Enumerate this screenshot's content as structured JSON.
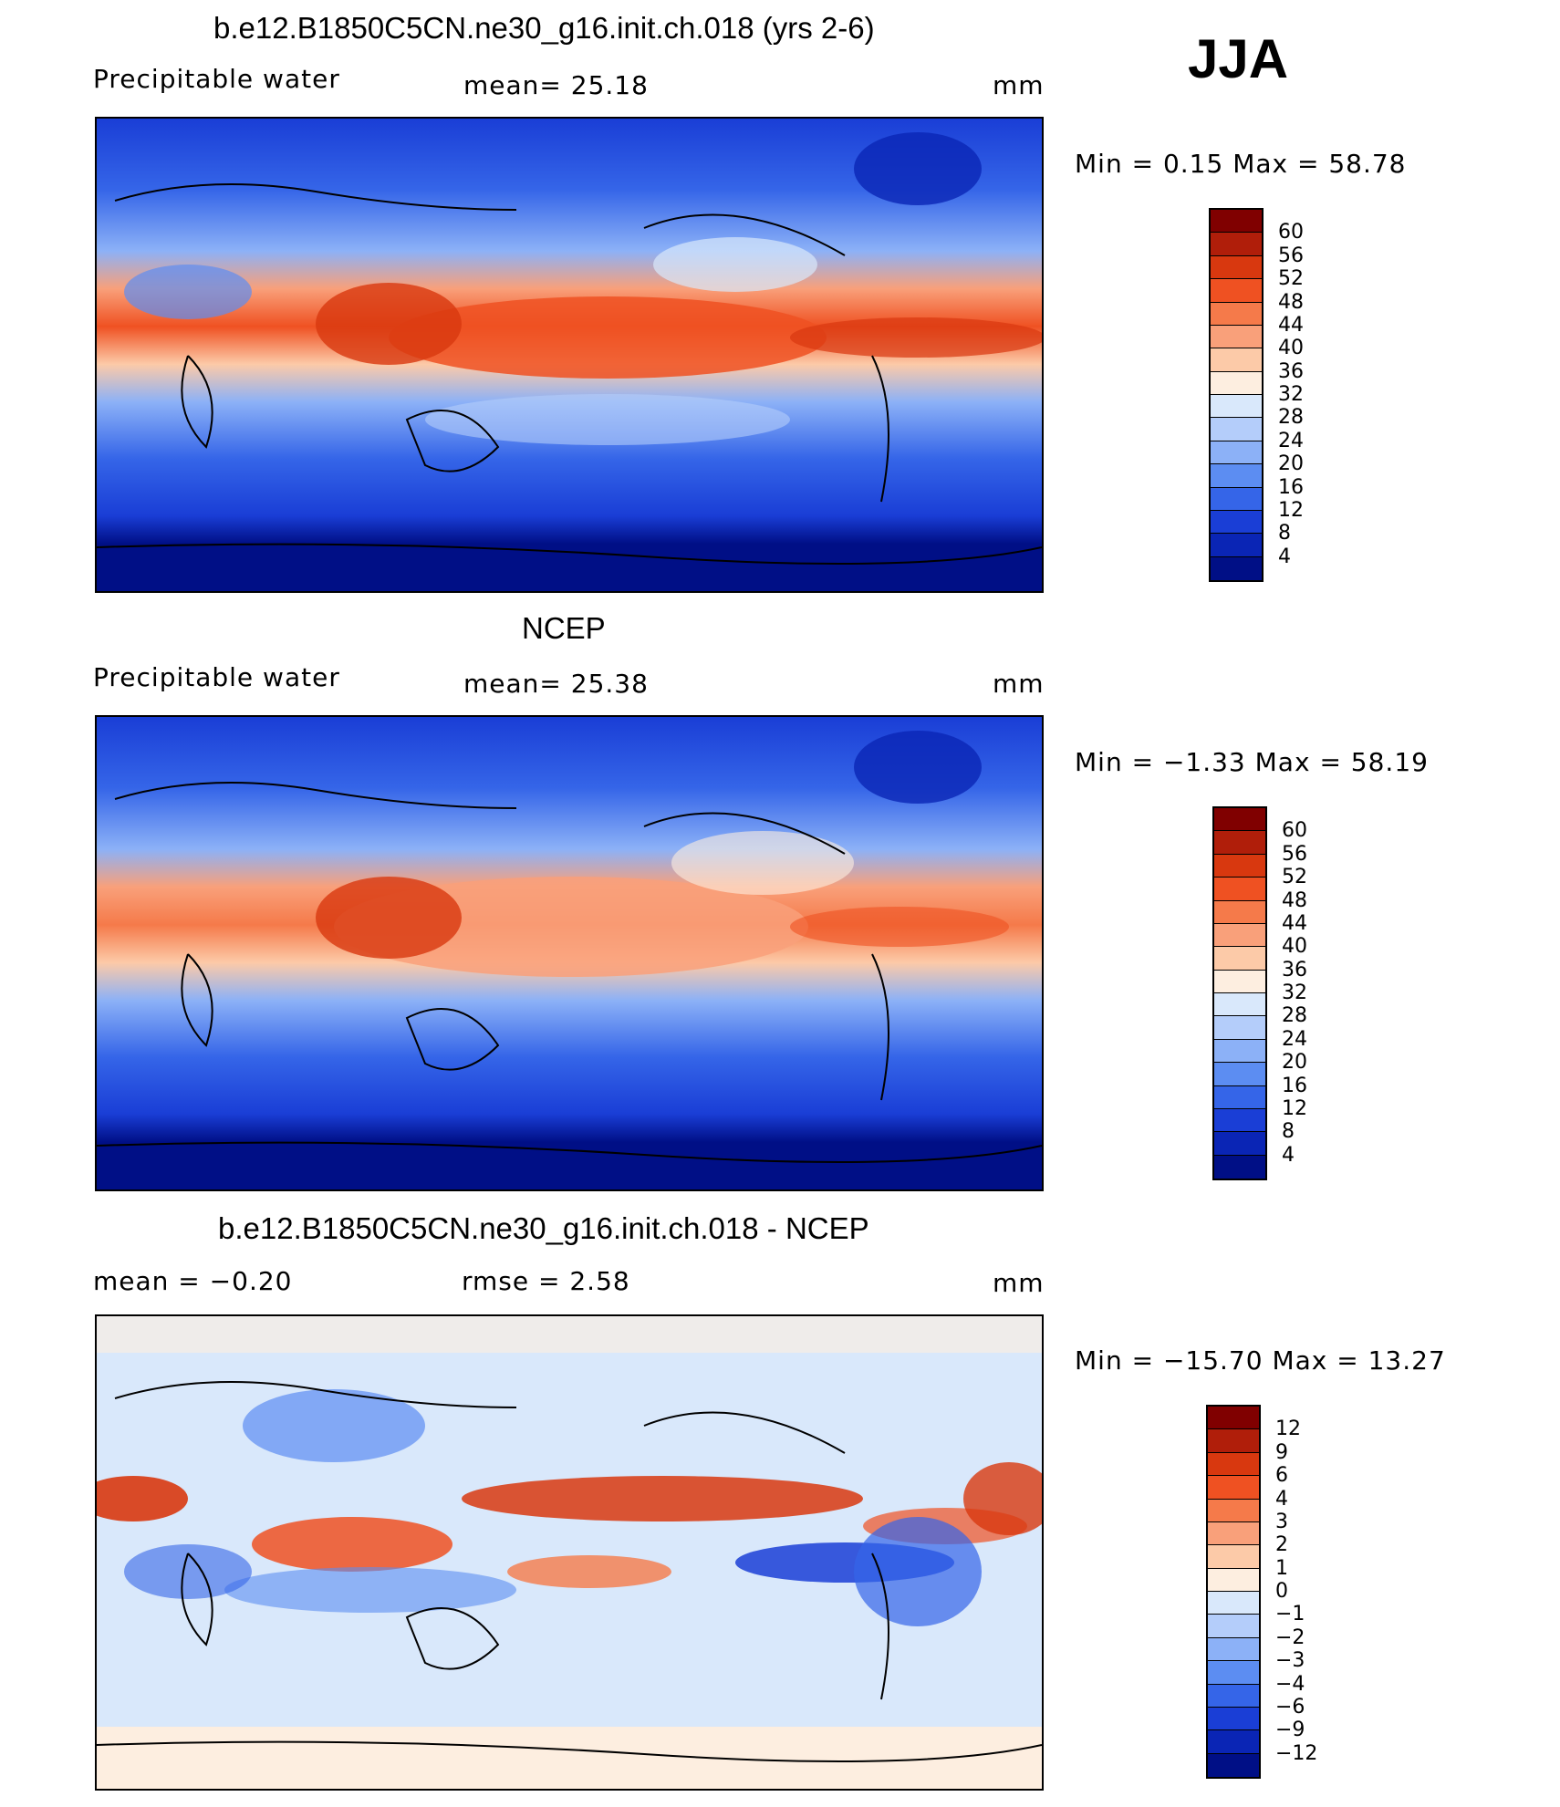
{
  "season_label": "JJA",
  "palette_precip": [
    "#e8ecff"
  ],
  "panels": [
    {
      "id": "model",
      "title": "b.e12.B1850C5CN.ne30_g16.init.ch.018 (yrs 2-6)",
      "left_label": "Precipitable  water",
      "mid_label": "mean=   25.18",
      "units": "mm",
      "minmax": "Min  =     0.15  Max  =    58.78",
      "colorbar_labels": [
        "60",
        "56",
        "52",
        "48",
        "44",
        "40",
        "36",
        "32",
        "28",
        "24",
        "20",
        "16",
        "12",
        "8",
        "4"
      ],
      "colorbar_colors": [
        "#800000",
        "#b01e0a",
        "#d8380f",
        "#ef5122",
        "#f57a4a",
        "#f9a07a",
        "#fccaa8",
        "#fdeee0",
        "#d9e8fb",
        "#b4cdfa",
        "#8cb1f7",
        "#5c8df2",
        "#3565e8",
        "#1a3ed6",
        "#0a25b5",
        "#000f86"
      ],
      "chart_data": {
        "type": "heatmap",
        "title": "b.e12.B1850C5CN.ne30_g16.init.ch.018 (yrs 2-6)",
        "variable": "Precipitable  water",
        "mean": 25.18,
        "units": "mm",
        "min": 0.15,
        "max": 58.78,
        "levels": [
          4,
          8,
          12,
          16,
          20,
          24,
          28,
          32,
          36,
          40,
          44,
          48,
          52,
          56,
          60
        ]
      }
    },
    {
      "id": "obs",
      "title": "NCEP",
      "left_label": "Precipitable  water",
      "mid_label": "mean=   25.38",
      "units": "mm",
      "minmax": "Min  =    −1.33  Max  =    58.19",
      "colorbar_labels": [
        "60",
        "56",
        "52",
        "48",
        "44",
        "40",
        "36",
        "32",
        "28",
        "24",
        "20",
        "16",
        "12",
        "8",
        "4"
      ],
      "colorbar_colors": [
        "#800000",
        "#b01e0a",
        "#d8380f",
        "#ef5122",
        "#f57a4a",
        "#f9a07a",
        "#fccaa8",
        "#fdeee0",
        "#d9e8fb",
        "#b4cdfa",
        "#8cb1f7",
        "#5c8df2",
        "#3565e8",
        "#1a3ed6",
        "#0a25b5",
        "#000f86"
      ],
      "chart_data": {
        "type": "heatmap",
        "title": "NCEP",
        "variable": "Precipitable  water",
        "mean": 25.38,
        "units": "mm",
        "min": -1.33,
        "max": 58.19,
        "levels": [
          4,
          8,
          12,
          16,
          20,
          24,
          28,
          32,
          36,
          40,
          44,
          48,
          52,
          56,
          60
        ]
      }
    },
    {
      "id": "diff",
      "title": "b.e12.B1850C5CN.ne30_g16.init.ch.018 - NCEP",
      "left_label": "mean  =    −0.20",
      "mid_label": "rmse  =     2.58",
      "units": "mm",
      "minmax": "Min  = −15.70  Max  =    13.27",
      "colorbar_labels": [
        "12",
        "9",
        "6",
        "4",
        "3",
        "2",
        "1",
        "0",
        "−1",
        "−2",
        "−3",
        "−4",
        "−6",
        "−9",
        "−12"
      ],
      "colorbar_colors": [
        "#800000",
        "#b01e0a",
        "#d8380f",
        "#ef5122",
        "#f57a4a",
        "#f9a07a",
        "#fccaa8",
        "#fdeee0",
        "#d9e8fb",
        "#b4cdfa",
        "#8cb1f7",
        "#5c8df2",
        "#3565e8",
        "#1a3ed6",
        "#0a25b5",
        "#000f86"
      ],
      "chart_data": {
        "type": "heatmap",
        "title": "b.e12.B1850C5CN.ne30_g16.init.ch.018 - NCEP",
        "mean": -0.2,
        "rmse": 2.58,
        "units": "mm",
        "min": -15.7,
        "max": 13.27,
        "levels": [
          -12,
          -9,
          -6,
          -4,
          -3,
          -2,
          -1,
          0,
          1,
          2,
          3,
          4,
          6,
          9,
          12
        ]
      }
    }
  ]
}
